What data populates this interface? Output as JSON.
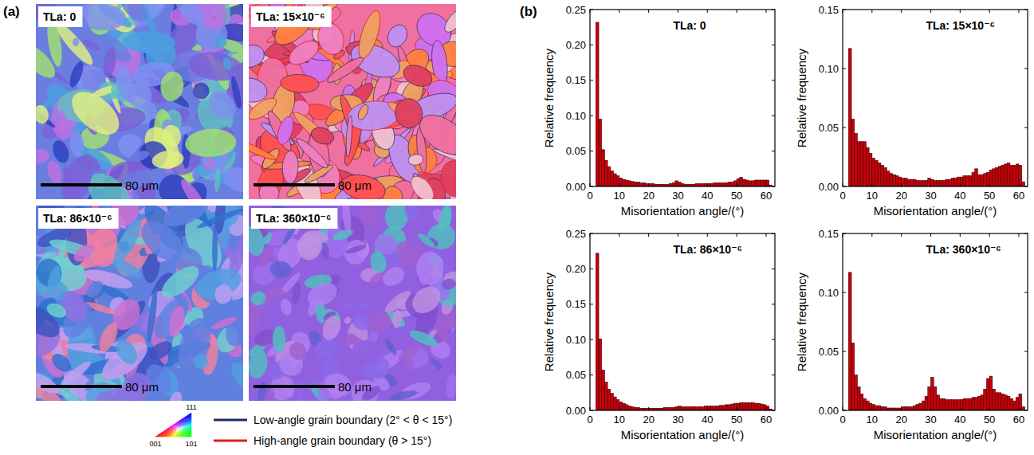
{
  "panel_labels": [
    "(a)",
    "(b)"
  ],
  "maps": [
    {
      "title": "TLa: 0",
      "scale_bar": "80 μm"
    },
    {
      "title": "TLa: 15×10⁻⁶",
      "scale_bar": "80 μm"
    },
    {
      "title": "TLa: 86×10⁻⁶",
      "scale_bar": "80 μm"
    },
    {
      "title": "TLa: 360×10⁻⁶",
      "scale_bar": "80 μm"
    }
  ],
  "map_legend": {
    "ipf_corners": [
      "111",
      "001",
      "101"
    ],
    "boundaries": [
      {
        "name": "Low-angle grain boundary (2° < θ < 15°)",
        "color": "#1f2a6b"
      },
      {
        "name": "High-angle grain boundary (θ > 15°)",
        "color": "#e31a1c"
      }
    ]
  },
  "chart_data": [
    {
      "type": "histogram",
      "title": "TLa: 0",
      "xlabel": "Misorientation angle/(°)",
      "ylabel": "Relative frequency",
      "color": "#c8000a",
      "bins": [
        2,
        3,
        4,
        5,
        6,
        7,
        8,
        9,
        10,
        11,
        12,
        13,
        14,
        15,
        16,
        17,
        18,
        19,
        20,
        21,
        22,
        23,
        24,
        25,
        26,
        27,
        28,
        29,
        30,
        31,
        32,
        33,
        34,
        35,
        36,
        37,
        38,
        39,
        40,
        41,
        42,
        43,
        44,
        45,
        46,
        47,
        48,
        49,
        50,
        51,
        52,
        53,
        54,
        55,
        56,
        57,
        58,
        59,
        60,
        61,
        62
      ],
      "values": [
        0.232,
        0.095,
        0.052,
        0.037,
        0.028,
        0.022,
        0.018,
        0.015,
        0.012,
        0.01,
        0.009,
        0.008,
        0.007,
        0.006,
        0.006,
        0.005,
        0.005,
        0.004,
        0.004,
        0.004,
        0.003,
        0.003,
        0.003,
        0.003,
        0.003,
        0.004,
        0.005,
        0.008,
        0.006,
        0.004,
        0.003,
        0.003,
        0.003,
        0.003,
        0.004,
        0.004,
        0.004,
        0.004,
        0.004,
        0.004,
        0.005,
        0.005,
        0.005,
        0.005,
        0.005,
        0.006,
        0.006,
        0.008,
        0.011,
        0.013,
        0.01,
        0.009,
        0.008,
        0.008,
        0.009,
        0.009,
        0.009,
        0.009,
        0.009,
        0.002
      ],
      "xlim": [
        0,
        63
      ],
      "xticks": [
        0,
        10,
        20,
        30,
        40,
        50,
        60
      ],
      "ylim": [
        0,
        0.25
      ],
      "yticks": [
        {
          "value": 0,
          "label": "0.00"
        },
        {
          "value": 0.05,
          "label": "0.05"
        },
        {
          "value": 0.1,
          "label": "0.10"
        },
        {
          "value": 0.15,
          "label": "0.15"
        },
        {
          "value": 0.2,
          "label": "0.20"
        },
        {
          "value": 0.25,
          "label": "0.25"
        }
      ]
    },
    {
      "type": "histogram",
      "title": "TLa: 15×10⁻⁶",
      "xlabel": "Misorientation angle/(°)",
      "ylabel": "Relative frequency",
      "color": "#c8000a",
      "bins": [
        2,
        3,
        4,
        5,
        6,
        7,
        8,
        9,
        10,
        11,
        12,
        13,
        14,
        15,
        16,
        17,
        18,
        19,
        20,
        21,
        22,
        23,
        24,
        25,
        26,
        27,
        28,
        29,
        30,
        31,
        32,
        33,
        34,
        35,
        36,
        37,
        38,
        39,
        40,
        41,
        42,
        43,
        44,
        45,
        46,
        47,
        48,
        49,
        50,
        51,
        52,
        53,
        54,
        55,
        56,
        57,
        58,
        59,
        60,
        61,
        62
      ],
      "values": [
        0.117,
        0.057,
        0.045,
        0.038,
        0.038,
        0.038,
        0.033,
        0.028,
        0.024,
        0.022,
        0.02,
        0.018,
        0.016,
        0.013,
        0.011,
        0.01,
        0.009,
        0.008,
        0.007,
        0.007,
        0.006,
        0.006,
        0.006,
        0.005,
        0.005,
        0.005,
        0.005,
        0.007,
        0.006,
        0.005,
        0.005,
        0.005,
        0.005,
        0.006,
        0.006,
        0.007,
        0.007,
        0.008,
        0.008,
        0.009,
        0.009,
        0.009,
        0.012,
        0.015,
        0.01,
        0.01,
        0.011,
        0.012,
        0.014,
        0.015,
        0.016,
        0.017,
        0.018,
        0.019,
        0.02,
        0.018,
        0.018,
        0.019,
        0.018,
        0.004
      ],
      "xlim": [
        0,
        63
      ],
      "xticks": [
        0,
        10,
        20,
        30,
        40,
        50,
        60
      ],
      "ylim": [
        0,
        0.15
      ],
      "yticks": [
        {
          "value": 0,
          "label": "0.00"
        },
        {
          "value": 0.05,
          "label": "0.05"
        },
        {
          "value": 0.1,
          "label": "0.10"
        },
        {
          "value": 0.15,
          "label": "0.15"
        }
      ]
    },
    {
      "type": "histogram",
      "title": "TLa: 86×10⁻⁶",
      "xlabel": "Misorientation angle/(°)",
      "ylabel": "Relative frequency",
      "color": "#c8000a",
      "bins": [
        2,
        3,
        4,
        5,
        6,
        7,
        8,
        9,
        10,
        11,
        12,
        13,
        14,
        15,
        16,
        17,
        18,
        19,
        20,
        21,
        22,
        23,
        24,
        25,
        26,
        27,
        28,
        29,
        30,
        31,
        32,
        33,
        34,
        35,
        36,
        37,
        38,
        39,
        40,
        41,
        42,
        43,
        44,
        45,
        46,
        47,
        48,
        49,
        50,
        51,
        52,
        53,
        54,
        55,
        56,
        57,
        58,
        59,
        60,
        61,
        62
      ],
      "values": [
        0.222,
        0.101,
        0.057,
        0.04,
        0.03,
        0.024,
        0.019,
        0.015,
        0.012,
        0.01,
        0.008,
        0.006,
        0.005,
        0.004,
        0.004,
        0.003,
        0.003,
        0.003,
        0.003,
        0.003,
        0.003,
        0.003,
        0.003,
        0.004,
        0.004,
        0.004,
        0.004,
        0.005,
        0.006,
        0.005,
        0.005,
        0.005,
        0.005,
        0.005,
        0.005,
        0.005,
        0.005,
        0.006,
        0.006,
        0.006,
        0.006,
        0.006,
        0.007,
        0.007,
        0.008,
        0.008,
        0.009,
        0.01,
        0.01,
        0.011,
        0.011,
        0.011,
        0.011,
        0.011,
        0.01,
        0.01,
        0.009,
        0.008,
        0.006,
        0.002
      ],
      "xlim": [
        0,
        63
      ],
      "xticks": [
        0,
        10,
        20,
        30,
        40,
        50,
        60
      ],
      "ylim": [
        0,
        0.25
      ],
      "yticks": [
        {
          "value": 0,
          "label": "0.00"
        },
        {
          "value": 0.05,
          "label": "0.05"
        },
        {
          "value": 0.1,
          "label": "0.10"
        },
        {
          "value": 0.15,
          "label": "0.15"
        },
        {
          "value": 0.2,
          "label": "0.20"
        },
        {
          "value": 0.25,
          "label": "0.25"
        }
      ]
    },
    {
      "type": "histogram",
      "title": "TLa: 360×10⁻⁶",
      "xlabel": "Misorientation angle/(°)",
      "ylabel": "Relative frequency",
      "color": "#c8000a",
      "bins": [
        2,
        3,
        4,
        5,
        6,
        7,
        8,
        9,
        10,
        11,
        12,
        13,
        14,
        15,
        16,
        17,
        18,
        19,
        20,
        21,
        22,
        23,
        24,
        25,
        26,
        27,
        28,
        29,
        30,
        31,
        32,
        33,
        34,
        35,
        36,
        37,
        38,
        39,
        40,
        41,
        42,
        43,
        44,
        45,
        46,
        47,
        48,
        49,
        50,
        51,
        52,
        53,
        54,
        55,
        56,
        57,
        58,
        59,
        60,
        61,
        62
      ],
      "values": [
        0.117,
        0.057,
        0.03,
        0.02,
        0.014,
        0.01,
        0.008,
        0.006,
        0.005,
        0.004,
        0.004,
        0.003,
        0.003,
        0.002,
        0.002,
        0.002,
        0.002,
        0.002,
        0.003,
        0.003,
        0.003,
        0.003,
        0.004,
        0.005,
        0.006,
        0.008,
        0.012,
        0.02,
        0.028,
        0.02,
        0.013,
        0.01,
        0.01,
        0.009,
        0.009,
        0.009,
        0.009,
        0.009,
        0.009,
        0.01,
        0.01,
        0.01,
        0.011,
        0.011,
        0.012,
        0.013,
        0.018,
        0.027,
        0.029,
        0.018,
        0.015,
        0.015,
        0.014,
        0.013,
        0.012,
        0.01,
        0.008,
        0.011,
        0.014,
        0.003
      ],
      "xlim": [
        0,
        63
      ],
      "xticks": [
        0,
        10,
        20,
        30,
        40,
        50,
        60
      ],
      "ylim": [
        0,
        0.15
      ],
      "yticks": [
        {
          "value": 0,
          "label": "0.00"
        },
        {
          "value": 0.05,
          "label": "0.05"
        },
        {
          "value": 0.1,
          "label": "0.10"
        },
        {
          "value": 0.15,
          "label": "0.15"
        }
      ]
    }
  ]
}
